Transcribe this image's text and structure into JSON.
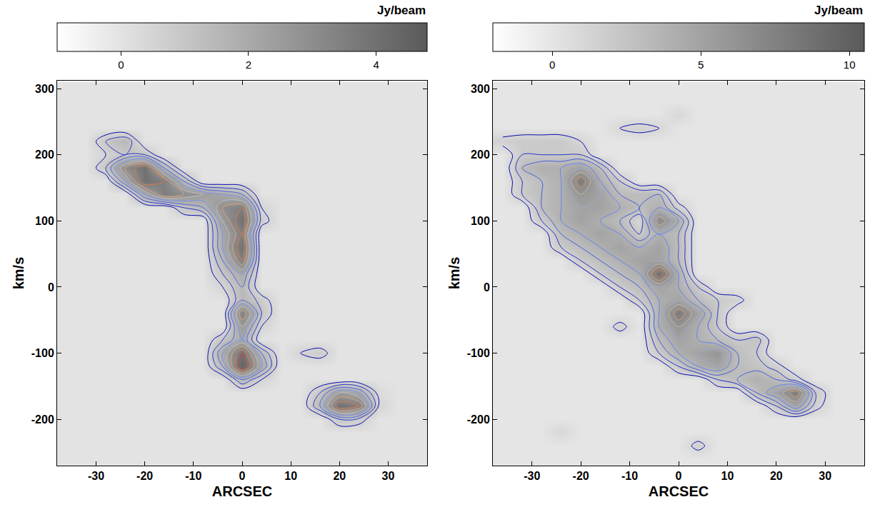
{
  "chart_data": [
    {
      "type": "contour",
      "x_label": "ARCSEC",
      "y_label": "km/s",
      "xlim": [
        -38,
        38
      ],
      "xticks": [
        -30,
        -20,
        -10,
        0,
        10,
        20,
        30
      ],
      "ylim": [
        -270,
        312
      ],
      "yticks": [
        -200,
        -100,
        0,
        100,
        200,
        300
      ],
      "colorbar": {
        "title": "Jy/beam",
        "range": [
          -1,
          4.8
        ],
        "ticks": [
          0,
          2,
          4
        ]
      },
      "contour_levels": {
        "start": 0.5,
        "end": 4.5,
        "size": 0.5
      },
      "x": [
        -36,
        -32,
        -28,
        -24,
        -20,
        -16,
        -12,
        -8,
        -4,
        0,
        4,
        8,
        12,
        16,
        20,
        24,
        28,
        32,
        36
      ],
      "y": [
        -260,
        -240,
        -220,
        -200,
        -180,
        -160,
        -140,
        -120,
        -100,
        -80,
        -60,
        -40,
        -20,
        0,
        20,
        40,
        60,
        80,
        100,
        120,
        140,
        160,
        180,
        200,
        220,
        240,
        260,
        280,
        300
      ],
      "z": [
        [
          0,
          0,
          0,
          0,
          0,
          0,
          0,
          0,
          0,
          0,
          0,
          0,
          0,
          0,
          0,
          0,
          0,
          0,
          0
        ],
        [
          0,
          0,
          0,
          0,
          0,
          0,
          0,
          0,
          0,
          0,
          0,
          0,
          0,
          0,
          0,
          0,
          0,
          0,
          0
        ],
        [
          0,
          0,
          0,
          0,
          0,
          0,
          0,
          0,
          0,
          0,
          0,
          0,
          0,
          0,
          0,
          0,
          0,
          0,
          0
        ],
        [
          0,
          0,
          0,
          0,
          0,
          0,
          0,
          0,
          0,
          0,
          0,
          0,
          0,
          0,
          1,
          0.8,
          0,
          0,
          0
        ],
        [
          0,
          0,
          0,
          0,
          0,
          0,
          0,
          0,
          0,
          0,
          0,
          0,
          0,
          1.5,
          4,
          3.5,
          0.5,
          0,
          0
        ],
        [
          0,
          0,
          0,
          0,
          0,
          0,
          0,
          0,
          0,
          0,
          0,
          0,
          0,
          1,
          2.5,
          2,
          0.3,
          0,
          0
        ],
        [
          0,
          0,
          0,
          0,
          0,
          0,
          0,
          0,
          0,
          1.5,
          0.5,
          0,
          0,
          0,
          0,
          0,
          0,
          0,
          0
        ],
        [
          0,
          0,
          0,
          0,
          0,
          0,
          0,
          0,
          1.5,
          4.5,
          2,
          0,
          0,
          0,
          0,
          0,
          0,
          0,
          0
        ],
        [
          0,
          0,
          0,
          0,
          0,
          0,
          0,
          0,
          2,
          4,
          1.5,
          0,
          0.5,
          0.8,
          0,
          0,
          0,
          0,
          0
        ],
        [
          0,
          0,
          0,
          0,
          0,
          0,
          0,
          0,
          1,
          2,
          0,
          0,
          0,
          0,
          0,
          0,
          0,
          0,
          0
        ],
        [
          0,
          0,
          0,
          0,
          0,
          0,
          0,
          0,
          0,
          2.5,
          0.5,
          0,
          0,
          0,
          0,
          0,
          0,
          0,
          0
        ],
        [
          0,
          0,
          0,
          0,
          0,
          0,
          0,
          0,
          0,
          3.5,
          1,
          0,
          0,
          0,
          0,
          0,
          0,
          0,
          0
        ],
        [
          0,
          0,
          0,
          0,
          0,
          0,
          0,
          0,
          0,
          1.5,
          0.8,
          0,
          0,
          0,
          0,
          0,
          0,
          0,
          0
        ],
        [
          0,
          0,
          0,
          0,
          0,
          0,
          0,
          0,
          0.5,
          1.5,
          0,
          0,
          0,
          0,
          0,
          0,
          0,
          0,
          0
        ],
        [
          0,
          0,
          0,
          0,
          0,
          0,
          0,
          0,
          1,
          2,
          0,
          0,
          0,
          0,
          0,
          0,
          0,
          0,
          0
        ],
        [
          0,
          0,
          0,
          0,
          0,
          0,
          0,
          0,
          1.5,
          3.5,
          0,
          0,
          0,
          0,
          0,
          0,
          0,
          0,
          0
        ],
        [
          0,
          0,
          0,
          0,
          0,
          0,
          0,
          0,
          2,
          4,
          0,
          0,
          0,
          0,
          0,
          0,
          0,
          0,
          0
        ],
        [
          0,
          0,
          0,
          0,
          0,
          0,
          0,
          0,
          2,
          3.5,
          0,
          0,
          0,
          0,
          0,
          0,
          0,
          0,
          0
        ],
        [
          0,
          0,
          0,
          0,
          0,
          0,
          0,
          0,
          2.5,
          4,
          0.8,
          0,
          0,
          0,
          0,
          0,
          0,
          0,
          0
        ],
        [
          0,
          0,
          0,
          0,
          0,
          0,
          1,
          1.5,
          3,
          3.5,
          0.5,
          0,
          0,
          0,
          0,
          0,
          0,
          0,
          0
        ],
        [
          0,
          0,
          0,
          0,
          2,
          3.5,
          3,
          2.5,
          2,
          1.5,
          0,
          0,
          0,
          0,
          0,
          0,
          0,
          0,
          0
        ],
        [
          0,
          0,
          0,
          2,
          4,
          3.5,
          1.5,
          0,
          0,
          0,
          0,
          0,
          0,
          0,
          0,
          0,
          0,
          0,
          0
        ],
        [
          0,
          0,
          1,
          3,
          4,
          1.5,
          0,
          0,
          0,
          0,
          0,
          0,
          0,
          0,
          0,
          0,
          0,
          0,
          0
        ],
        [
          0,
          0,
          0.5,
          1,
          1,
          0,
          0,
          0,
          0,
          0,
          0,
          0,
          0,
          0,
          0,
          0,
          0,
          0,
          0
        ],
        [
          0,
          0,
          1,
          1.5,
          0,
          0,
          0,
          0,
          0,
          0,
          0,
          0,
          0,
          0,
          0,
          0,
          0,
          0,
          0
        ],
        [
          0,
          0,
          0,
          0,
          0,
          0,
          0,
          0,
          0,
          0,
          0,
          0,
          0,
          0,
          0,
          0,
          0,
          0,
          0
        ],
        [
          0,
          0,
          0,
          0,
          0,
          0,
          0,
          0,
          0,
          0,
          0,
          0,
          0,
          0,
          0,
          0,
          0,
          0,
          0
        ],
        [
          0,
          0,
          0,
          0,
          0,
          0,
          0,
          0,
          0,
          0,
          0,
          0,
          0,
          0,
          0,
          0,
          0,
          0,
          0
        ],
        [
          0,
          0,
          0,
          0,
          0,
          0,
          0,
          0,
          0,
          0,
          0,
          0,
          0,
          0,
          0,
          0,
          0,
          0,
          0
        ]
      ]
    },
    {
      "type": "contour",
      "x_label": "ARCSEC",
      "y_label": "km/s",
      "xlim": [
        -38,
        38
      ],
      "xticks": [
        -30,
        -20,
        -10,
        0,
        10,
        20,
        30
      ],
      "ylim": [
        -270,
        312
      ],
      "yticks": [
        -200,
        -100,
        0,
        100,
        200,
        300
      ],
      "colorbar": {
        "title": "Jy/beam",
        "range": [
          -2,
          10.5
        ],
        "ticks": [
          0,
          5,
          10
        ]
      },
      "contour_levels": {
        "start": 1,
        "end": 10,
        "size": 1
      },
      "x": [
        -36,
        -32,
        -28,
        -24,
        -20,
        -16,
        -12,
        -8,
        -4,
        0,
        4,
        8,
        12,
        16,
        20,
        24,
        28,
        32,
        36
      ],
      "y": [
        -260,
        -240,
        -220,
        -200,
        -180,
        -160,
        -140,
        -120,
        -100,
        -80,
        -60,
        -40,
        -20,
        0,
        20,
        40,
        60,
        80,
        100,
        120,
        140,
        160,
        180,
        200,
        220,
        240,
        260,
        280,
        300
      ],
      "z": [
        [
          0,
          0,
          0,
          0,
          0,
          0,
          0,
          0,
          0,
          0,
          0,
          0,
          0,
          0,
          0,
          0,
          0,
          0,
          0
        ],
        [
          0,
          0,
          0,
          0,
          0,
          0,
          0,
          0,
          0,
          0,
          1.5,
          0,
          0,
          0,
          0,
          0,
          0,
          0,
          0
        ],
        [
          0,
          0,
          0,
          1,
          0,
          0,
          0,
          0,
          0,
          0,
          0,
          0,
          0,
          0,
          0,
          0,
          0,
          0,
          0
        ],
        [
          0,
          0,
          0,
          0,
          0,
          0,
          0,
          0,
          0,
          0,
          0,
          0,
          0,
          0,
          0,
          0,
          0,
          0,
          0
        ],
        [
          0,
          0,
          0,
          0,
          0,
          0,
          0,
          0,
          0,
          0,
          0,
          0,
          0,
          0,
          2,
          5,
          1.5,
          0,
          0
        ],
        [
          0,
          0,
          0,
          0,
          0,
          0,
          0,
          0,
          0,
          0,
          0,
          0,
          0,
          3,
          5,
          8,
          2,
          0,
          0
        ],
        [
          0,
          0,
          0,
          0,
          0,
          0,
          0,
          0,
          0,
          0,
          0,
          2,
          3,
          4,
          3,
          1.5,
          0,
          0,
          0
        ],
        [
          0,
          0,
          0,
          0,
          0,
          0,
          0,
          0,
          0,
          2,
          4,
          5,
          3,
          2.5,
          1.5,
          0,
          0,
          0,
          0
        ],
        [
          0,
          0,
          0,
          0,
          0,
          0,
          0,
          0,
          2,
          4,
          5,
          6,
          3,
          2,
          0,
          0,
          0,
          0,
          0
        ],
        [
          0,
          0,
          0,
          0,
          0,
          0,
          0,
          0,
          3,
          5,
          4,
          3,
          2,
          2.5,
          0,
          0,
          0,
          0,
          0
        ],
        [
          0,
          0,
          0,
          0,
          0,
          0,
          1.5,
          0,
          4,
          6,
          4,
          2,
          0,
          0,
          0,
          0,
          0,
          0,
          0
        ],
        [
          0,
          0,
          0,
          0,
          0,
          0,
          0,
          0,
          4,
          8,
          5,
          2,
          0,
          0,
          0,
          0,
          0,
          0,
          0
        ],
        [
          0,
          0,
          0,
          0,
          0,
          0,
          0,
          2,
          4,
          5,
          3,
          2,
          1.5,
          0,
          0,
          0,
          0,
          0,
          0
        ],
        [
          0,
          0,
          0,
          0,
          0,
          0,
          2,
          3,
          5,
          4,
          2,
          0,
          0,
          0,
          0,
          0,
          0,
          0,
          0
        ],
        [
          0,
          0,
          0,
          0,
          0,
          2,
          3,
          4,
          9,
          4,
          0,
          0,
          0,
          0,
          0,
          0,
          0,
          0,
          0
        ],
        [
          0,
          0,
          0,
          0,
          2,
          3,
          4,
          5,
          5,
          3,
          0,
          0,
          0,
          0,
          0,
          0,
          0,
          0,
          0
        ],
        [
          0,
          0,
          0,
          2,
          3,
          4,
          5,
          4,
          5,
          3,
          0,
          0,
          0,
          0,
          0,
          0,
          0,
          0,
          0
        ],
        [
          0,
          0,
          0,
          3,
          4,
          5,
          4,
          2,
          4,
          3,
          0,
          0,
          0,
          0,
          0,
          0,
          0,
          0,
          0
        ],
        [
          0,
          0,
          2,
          4,
          5,
          4,
          3,
          1,
          7,
          4,
          0,
          0,
          0,
          0,
          0,
          0,
          0,
          0,
          0
        ],
        [
          0,
          0,
          3,
          4,
          5,
          5,
          4,
          3,
          4,
          1.5,
          0,
          0,
          0,
          0,
          0,
          0,
          0,
          0,
          0
        ],
        [
          0,
          2,
          3,
          4,
          6,
          5,
          3,
          3,
          3,
          0,
          0,
          0,
          0,
          0,
          0,
          0,
          0,
          0,
          0
        ],
        [
          0,
          2,
          3,
          4,
          8,
          4,
          2,
          0,
          0,
          0,
          0,
          0,
          0,
          0,
          0,
          0,
          0,
          0,
          0
        ],
        [
          0,
          3,
          4,
          4,
          5,
          3,
          0,
          0,
          0,
          0,
          0,
          0,
          0,
          0,
          0,
          0,
          0,
          0,
          0
        ],
        [
          0,
          2,
          2,
          2,
          2,
          0,
          0,
          0,
          0,
          0,
          0,
          0,
          0,
          0,
          0,
          0,
          0,
          0,
          0
        ],
        [
          1.5,
          2,
          2,
          2,
          1,
          0,
          0,
          0,
          0,
          0,
          0,
          0,
          0,
          0,
          0,
          0,
          0,
          0,
          0
        ],
        [
          0,
          0,
          0,
          0,
          0,
          0,
          1,
          1.5,
          1,
          0,
          0,
          0,
          0,
          0,
          0,
          0,
          0,
          0,
          0
        ],
        [
          0,
          0,
          0,
          0,
          0,
          0,
          0,
          0,
          0,
          1,
          0,
          0,
          0,
          0,
          0,
          0,
          0,
          0,
          0
        ],
        [
          0,
          0,
          0,
          0,
          0,
          0,
          0,
          0,
          0,
          0,
          0,
          0,
          0,
          0,
          0,
          0,
          0,
          0,
          0
        ],
        [
          0,
          0,
          0,
          0,
          0,
          0,
          0,
          0,
          0,
          0,
          0,
          0,
          0,
          0,
          0,
          0,
          0,
          0,
          0
        ]
      ]
    }
  ]
}
